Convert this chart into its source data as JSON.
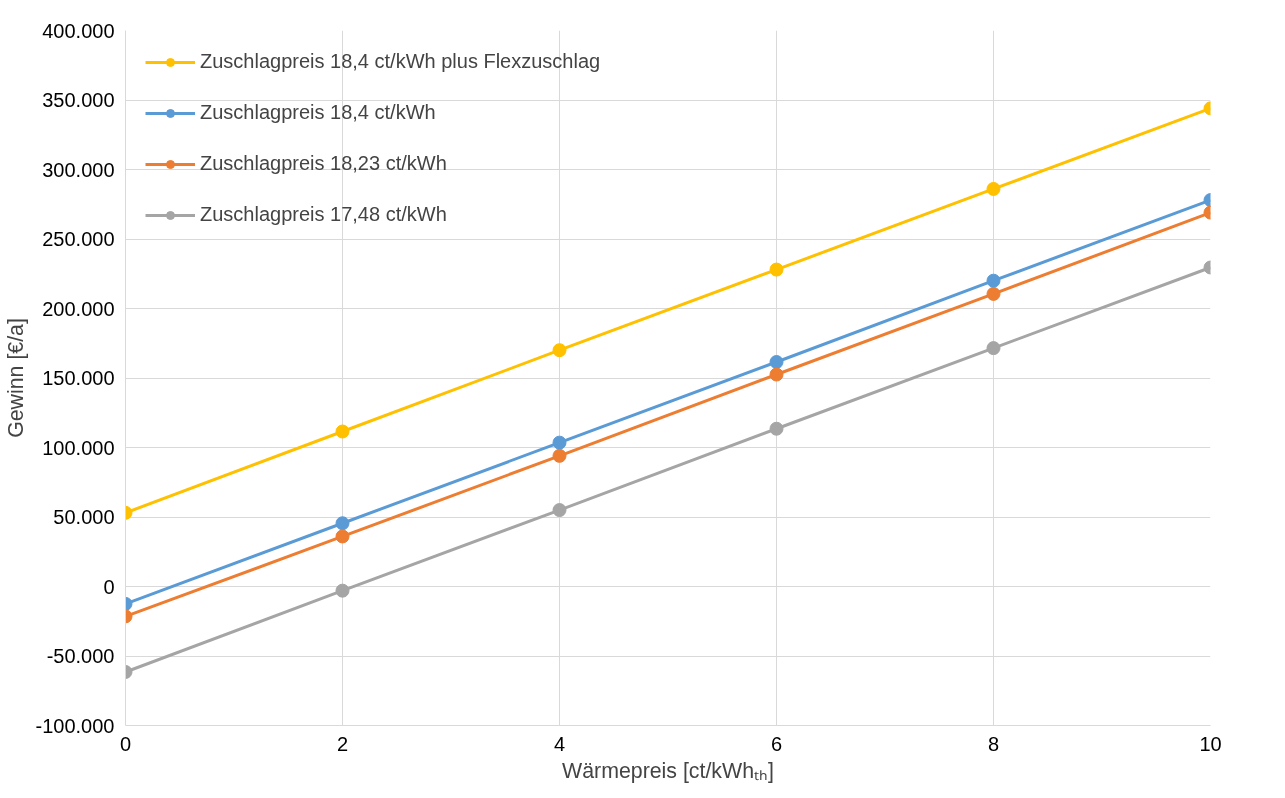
{
  "chart_data": {
    "type": "line",
    "xlabel": "Wärmepreis [ct/kWhₜₕ]",
    "ylabel": "Gewinn [€/a]",
    "x": [
      0,
      2,
      4,
      6,
      8,
      10
    ],
    "series": [
      {
        "name": "Zuschlagpreis 18,4 ct/kWh plus Flexzuschlag",
        "color": "#ffc000",
        "values": [
          53000,
          111500,
          170000,
          228000,
          286000,
          344000
        ]
      },
      {
        "name": "Zuschlagpreis 18,4 ct/kWh",
        "color": "#5b9bd5",
        "values": [
          -12500,
          45500,
          103500,
          161500,
          220000,
          278000
        ]
      },
      {
        "name": "Zuschlagpreis 18,23 ct/kWh",
        "color": "#ed7d31",
        "values": [
          -21500,
          36000,
          94000,
          152500,
          210500,
          269000
        ]
      },
      {
        "name": "Zuschlagpreis 17,48 ct/kWh",
        "color": "#a5a5a5",
        "values": [
          -61500,
          -3000,
          55000,
          113500,
          171500,
          229500
        ]
      }
    ],
    "xlim": [
      0,
      10
    ],
    "xticks": [
      0,
      2,
      4,
      6,
      8,
      10
    ],
    "ylim": [
      -100000,
      400000
    ],
    "yticks": [
      {
        "value": -100000,
        "label": "-100.000"
      },
      {
        "value": -50000,
        "label": "-50.000"
      },
      0,
      {
        "value": 50000,
        "label": "50.000"
      },
      {
        "value": 100000,
        "label": "100.000"
      },
      {
        "value": 150000,
        "label": "150.000"
      },
      {
        "value": 200000,
        "label": "200.000"
      },
      {
        "value": 250000,
        "label": "250.000"
      },
      {
        "value": 300000,
        "label": "300.000"
      },
      {
        "value": 350000,
        "label": "350.000"
      },
      {
        "value": 400000,
        "label": "400.000"
      }
    ],
    "grid": true,
    "legend": "top left",
    "marker": "circle",
    "line_style": "solid"
  }
}
